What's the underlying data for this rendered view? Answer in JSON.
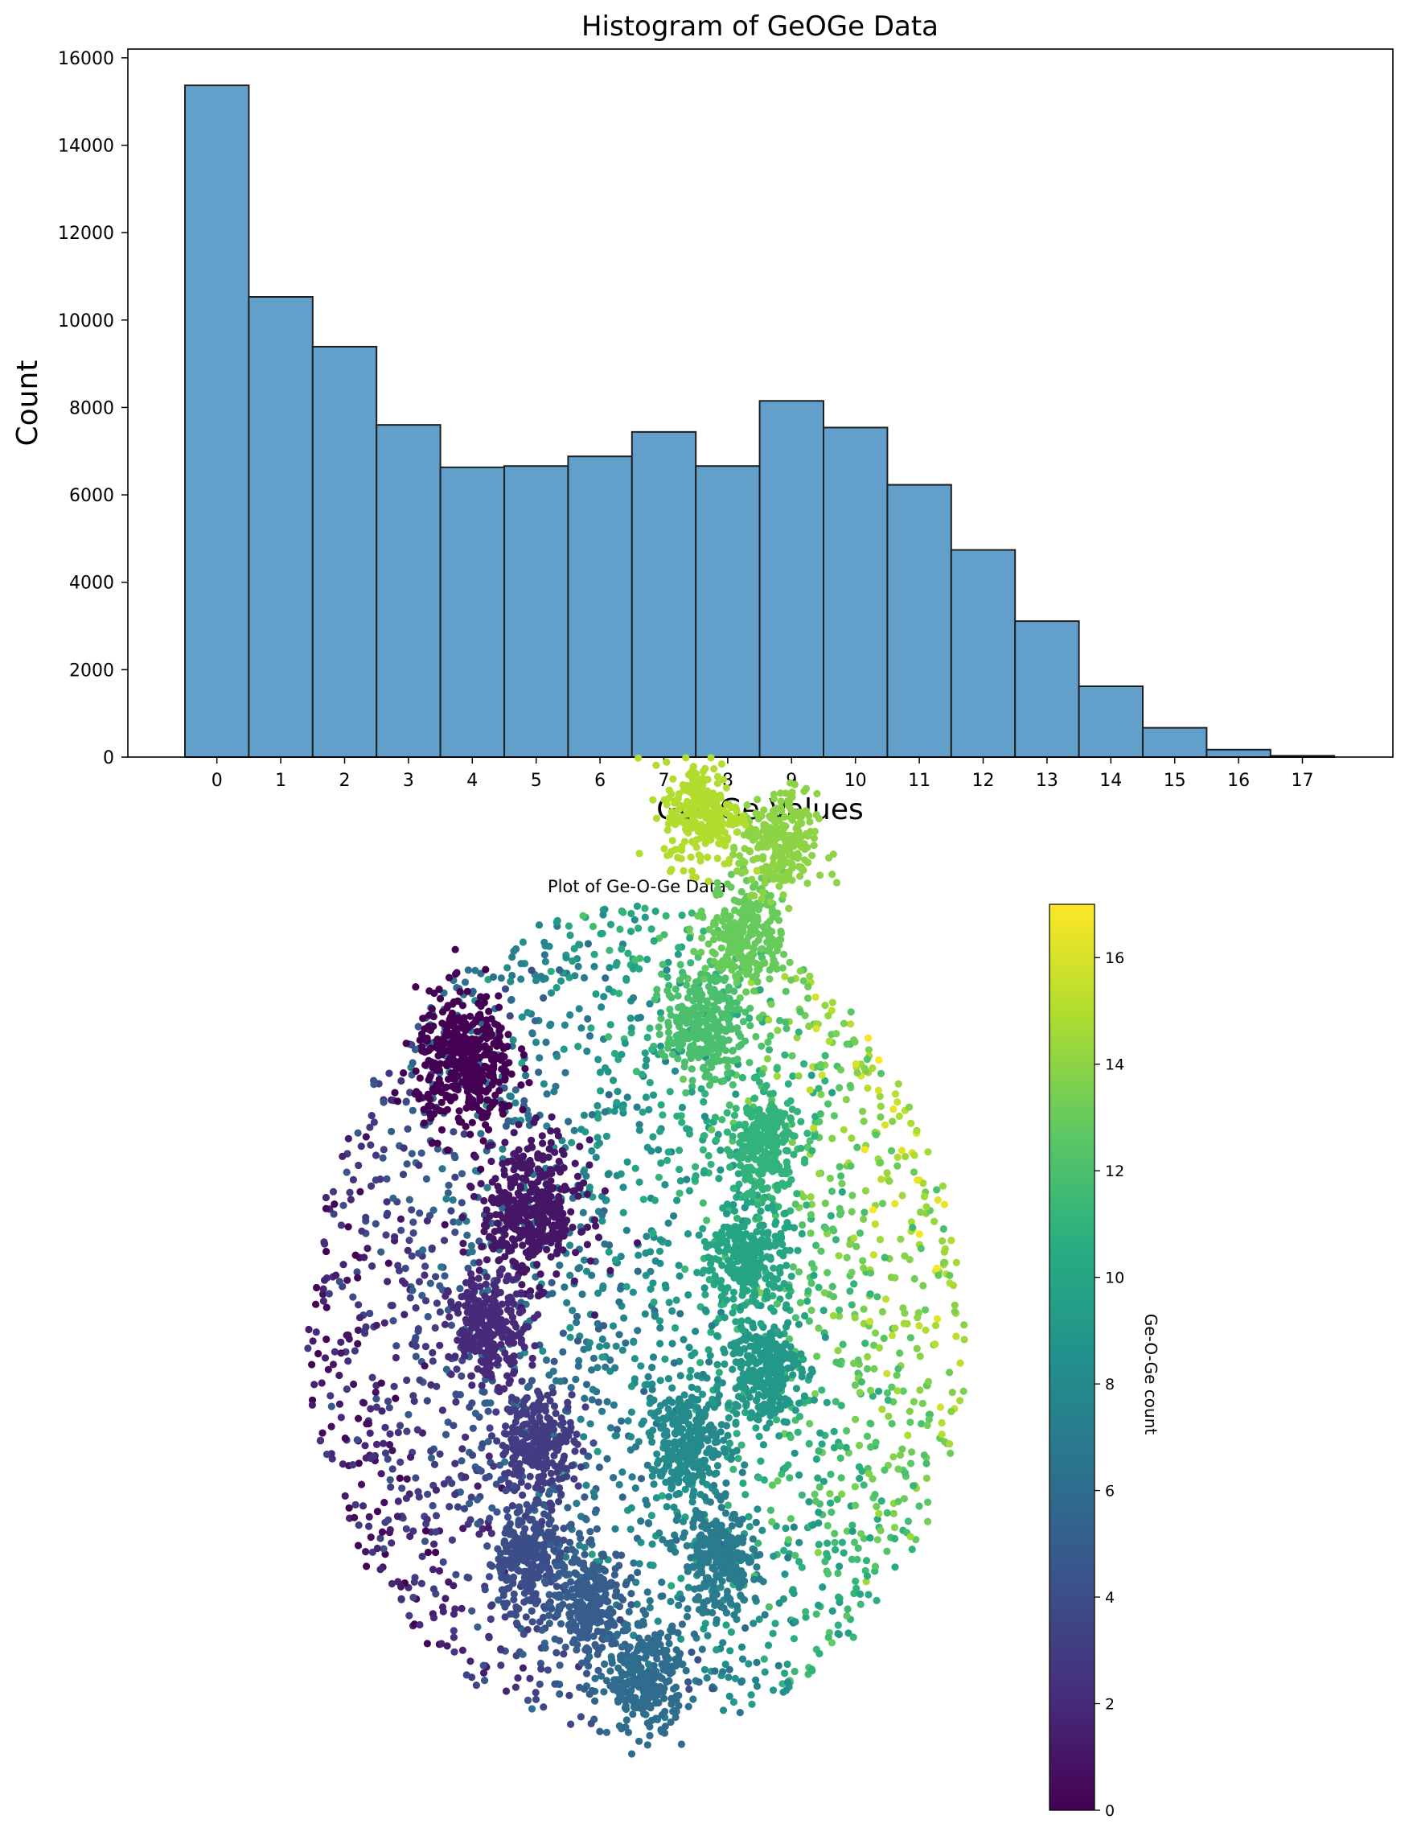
{
  "chart_data": [
    {
      "type": "bar",
      "title": "Histogram of GeOGe Data",
      "xlabel": "GeOGe Values",
      "ylabel": "Count",
      "ylim": [
        0,
        16200
      ],
      "yticks": [
        0,
        2000,
        4000,
        6000,
        8000,
        10000,
        12000,
        14000,
        16000
      ],
      "categories": [
        "0",
        "1",
        "2",
        "3",
        "4",
        "5",
        "6",
        "7",
        "8",
        "9",
        "10",
        "11",
        "12",
        "13",
        "14",
        "15",
        "16",
        "17"
      ],
      "values": [
        15370,
        10530,
        9390,
        7600,
        6630,
        6660,
        6880,
        7440,
        6660,
        8150,
        7540,
        6230,
        4740,
        3110,
        1620,
        670,
        170,
        30
      ],
      "bar_color": "#62a0cb",
      "edge_color": "#1f1f1f",
      "grid": false
    },
    {
      "type": "scatter",
      "title": "Plot of Ge-O-Ge Data",
      "colorbar_label": "Ge-O-Ge count",
      "colorbar_range": [
        0,
        17
      ],
      "colorbar_ticks": [
        0,
        2,
        4,
        6,
        8,
        10,
        12,
        14,
        16
      ],
      "colormap": "viridis",
      "axes_visible": false,
      "clusters": [
        {
          "value": 0,
          "x": -0.52,
          "y": 0.62
        },
        {
          "value": 1,
          "x": -0.32,
          "y": 0.26
        },
        {
          "value": 2,
          "x": -0.45,
          "y": -0.02
        },
        {
          "value": 3,
          "x": -0.3,
          "y": -0.3
        },
        {
          "value": 4,
          "x": -0.34,
          "y": -0.58
        },
        {
          "value": 5,
          "x": -0.14,
          "y": -0.68
        },
        {
          "value": 6,
          "x": 0.03,
          "y": -0.87
        },
        {
          "value": 7,
          "x": 0.25,
          "y": -0.58
        },
        {
          "value": 8,
          "x": 0.16,
          "y": -0.3
        },
        {
          "value": 9,
          "x": 0.38,
          "y": -0.12
        },
        {
          "value": 10,
          "x": 0.34,
          "y": 0.15
        },
        {
          "value": 11,
          "x": 0.38,
          "y": 0.42
        },
        {
          "value": 12,
          "x": 0.2,
          "y": 0.71
        },
        {
          "value": 13,
          "x": 0.33,
          "y": 0.93
        },
        {
          "value": 14,
          "x": 0.43,
          "y": 1.14
        },
        {
          "value": 15,
          "x": 0.2,
          "y": 1.22
        }
      ]
    }
  ]
}
